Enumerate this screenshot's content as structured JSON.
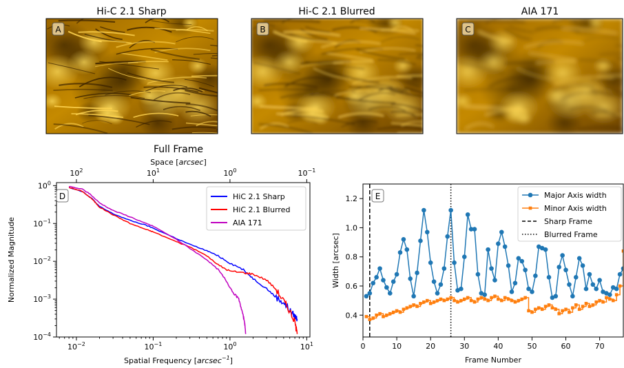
{
  "panels": [
    {
      "title": "Hi-C 2.1 Sharp",
      "badge": "A"
    },
    {
      "title": "Hi-C 2.1 Blurred",
      "badge": "B"
    },
    {
      "title": "AIA 171",
      "badge": "C"
    }
  ],
  "colors": {
    "image_dark": "#1a0f00",
    "image_mid": "#b07800",
    "image_bright": "#ffd040"
  },
  "chart_data": [
    {
      "type": "line",
      "title": "Full Frame",
      "badge": "D",
      "xscale": "log",
      "yscale": "log",
      "xlabel": "Spatial Frequency  [arcsec⁻¹]",
      "xlabel_text": "Spatial Frequency  [",
      "xlabel_unit": "arcsec",
      "xlabel_sup": "−1",
      "xlabel_close": "]",
      "top_xlabel_text": "Space [",
      "top_xlabel_unit": "arcsec",
      "top_xlabel_close": "]",
      "ylabel": "Normalized Magnitude",
      "xlim": [
        0.0055,
        11
      ],
      "ylim": [
        0.0001,
        1.2
      ],
      "xticks": [
        {
          "v": 0.01,
          "base": "10",
          "exp": "−2"
        },
        {
          "v": 0.1,
          "base": "10",
          "exp": "−1"
        },
        {
          "v": 1,
          "base": "10",
          "exp": "0"
        },
        {
          "v": 10,
          "base": "10",
          "exp": "1"
        }
      ],
      "top_xticks": [
        {
          "space": 100,
          "base": "10",
          "exp": "2"
        },
        {
          "space": 10,
          "base": "10",
          "exp": "1"
        },
        {
          "space": 1,
          "base": "10",
          "exp": "0"
        },
        {
          "space": 0.1,
          "base": "10",
          "exp": "−1"
        }
      ],
      "yticks": [
        {
          "v": 0.0001,
          "base": "10",
          "exp": "−4"
        },
        {
          "v": 0.001,
          "base": "10",
          "exp": "−3"
        },
        {
          "v": 0.01,
          "base": "10",
          "exp": "−2"
        },
        {
          "v": 0.1,
          "base": "10",
          "exp": "−1"
        },
        {
          "v": 1,
          "base": "10",
          "exp": "0"
        }
      ],
      "legend_position": "upper right",
      "series": [
        {
          "name": "HiC 2.1 Sharp",
          "color": "#0000ff",
          "x": [
            0.008,
            0.012,
            0.016,
            0.02,
            0.03,
            0.05,
            0.08,
            0.1,
            0.2,
            0.3,
            0.5,
            0.7,
            1.0,
            1.5,
            2.0,
            3.0,
            4.0,
            5.0,
            6.0,
            7.0,
            7.5
          ],
          "y": [
            0.9,
            0.7,
            0.45,
            0.28,
            0.18,
            0.12,
            0.09,
            0.075,
            0.04,
            0.028,
            0.019,
            0.014,
            0.009,
            0.006,
            0.0035,
            0.0019,
            0.0011,
            0.0008,
            0.0005,
            0.00035,
            0.0003
          ]
        },
        {
          "name": "HiC 2.1 Blurred",
          "color": "#ff0000",
          "x": [
            0.008,
            0.012,
            0.016,
            0.02,
            0.03,
            0.05,
            0.08,
            0.1,
            0.2,
            0.3,
            0.5,
            0.7,
            1.0,
            1.5,
            2.0,
            3.0,
            4.0,
            5.0,
            6.0,
            7.0,
            7.5
          ],
          "y": [
            0.9,
            0.7,
            0.44,
            0.27,
            0.17,
            0.1,
            0.07,
            0.06,
            0.033,
            0.024,
            0.014,
            0.008,
            0.0055,
            0.005,
            0.0046,
            0.0032,
            0.0018,
            0.0009,
            0.0005,
            0.00025,
            0.00012
          ]
        },
        {
          "name": "AIA 171",
          "color": "#bf00bf",
          "x": [
            0.008,
            0.012,
            0.015,
            0.02,
            0.03,
            0.05,
            0.08,
            0.1,
            0.2,
            0.3,
            0.5,
            0.7,
            0.9,
            1.1,
            1.3,
            1.45,
            1.55,
            1.6
          ],
          "y": [
            0.95,
            0.8,
            0.6,
            0.35,
            0.22,
            0.15,
            0.1,
            0.085,
            0.038,
            0.022,
            0.011,
            0.006,
            0.003,
            0.0015,
            0.001,
            0.00045,
            0.00025,
            0.00012
          ]
        }
      ]
    },
    {
      "type": "line",
      "badge": "E",
      "xlabel": "Frame Number",
      "ylabel": "Width [arcsec]",
      "xlim": [
        0,
        77
      ],
      "ylim": [
        0.25,
        1.3
      ],
      "xticks": [
        0,
        10,
        20,
        30,
        40,
        50,
        60,
        70
      ],
      "xtick_labels": [
        "0",
        "10",
        "20",
        "30",
        "40",
        "50",
        "60",
        "70"
      ],
      "yticks": [
        0.4,
        0.6,
        0.8,
        1.0,
        1.2
      ],
      "ytick_labels": [
        "0.4",
        "0.6",
        "0.8",
        "1.0",
        "1.2"
      ],
      "legend_position": "upper right",
      "vlines": [
        {
          "name": "Sharp Frame",
          "x": 2,
          "style": "dashed"
        },
        {
          "name": "Blurred Frame",
          "x": 26,
          "style": "dotted"
        }
      ],
      "series": [
        {
          "name": "Major Axis width",
          "color": "#1f77b4",
          "marker": "circle",
          "x": [
            1,
            2,
            3,
            4,
            5,
            6,
            7,
            8,
            9,
            10,
            11,
            12,
            13,
            14,
            15,
            16,
            17,
            18,
            19,
            20,
            21,
            22,
            23,
            24,
            25,
            26,
            27,
            28,
            29,
            30,
            31,
            32,
            33,
            34,
            35,
            36,
            37,
            38,
            39,
            40,
            41,
            42,
            43,
            44,
            45,
            46,
            47,
            48,
            49,
            50,
            51,
            52,
            53,
            54,
            55,
            56,
            57,
            58,
            59,
            60,
            61,
            62,
            63,
            64,
            65,
            66,
            67,
            68,
            69,
            70,
            71,
            72,
            73,
            74,
            75,
            76,
            77
          ],
          "y": [
            0.53,
            0.55,
            0.62,
            0.66,
            0.72,
            0.64,
            0.59,
            0.55,
            0.63,
            0.68,
            0.83,
            0.92,
            0.85,
            0.65,
            0.53,
            0.69,
            0.91,
            1.12,
            0.97,
            0.76,
            0.63,
            0.55,
            0.61,
            0.72,
            0.94,
            1.12,
            0.76,
            0.57,
            0.58,
            0.8,
            1.09,
            0.99,
            0.99,
            0.68,
            0.55,
            0.54,
            0.85,
            0.72,
            0.64,
            0.89,
            0.97,
            0.87,
            0.74,
            0.56,
            0.62,
            0.79,
            0.77,
            0.71,
            0.58,
            0.56,
            0.67,
            0.87,
            0.86,
            0.85,
            0.66,
            0.52,
            0.53,
            0.73,
            0.81,
            0.71,
            0.61,
            0.53,
            0.66,
            0.79,
            0.74,
            0.58,
            0.68,
            0.61,
            0.58,
            0.64,
            0.56,
            0.55,
            0.54,
            0.59,
            0.58,
            0.68,
            0.72
          ]
        },
        {
          "name": "Minor Axis width",
          "color": "#ff7f0e",
          "marker": "square",
          "x": [
            1,
            2,
            3,
            4,
            5,
            6,
            7,
            8,
            9,
            10,
            11,
            12,
            13,
            14,
            15,
            16,
            17,
            18,
            19,
            20,
            21,
            22,
            23,
            24,
            25,
            26,
            27,
            28,
            29,
            30,
            31,
            32,
            33,
            34,
            35,
            36,
            37,
            38,
            39,
            40,
            41,
            42,
            43,
            44,
            45,
            46,
            47,
            48,
            49,
            50,
            51,
            52,
            53,
            54,
            55,
            56,
            57,
            58,
            59,
            60,
            61,
            62,
            63,
            64,
            65,
            66,
            67,
            68,
            69,
            70,
            71,
            72,
            73,
            74,
            75,
            76,
            77
          ],
          "y": [
            0.39,
            0.37,
            0.38,
            0.4,
            0.41,
            0.39,
            0.4,
            0.41,
            0.42,
            0.43,
            0.42,
            0.44,
            0.45,
            0.46,
            0.47,
            0.46,
            0.48,
            0.49,
            0.5,
            0.48,
            0.49,
            0.5,
            0.51,
            0.5,
            0.51,
            0.52,
            0.5,
            0.49,
            0.5,
            0.51,
            0.52,
            0.5,
            0.49,
            0.51,
            0.52,
            0.51,
            0.5,
            0.52,
            0.53,
            0.51,
            0.5,
            0.52,
            0.51,
            0.5,
            0.49,
            0.5,
            0.51,
            0.52,
            0.43,
            0.42,
            0.44,
            0.45,
            0.44,
            0.46,
            0.47,
            0.45,
            0.44,
            0.41,
            0.43,
            0.44,
            0.42,
            0.45,
            0.47,
            0.44,
            0.46,
            0.48,
            0.46,
            0.47,
            0.49,
            0.5,
            0.49,
            0.52,
            0.51,
            0.5,
            0.54,
            0.6,
            0.84
          ]
        }
      ]
    }
  ]
}
